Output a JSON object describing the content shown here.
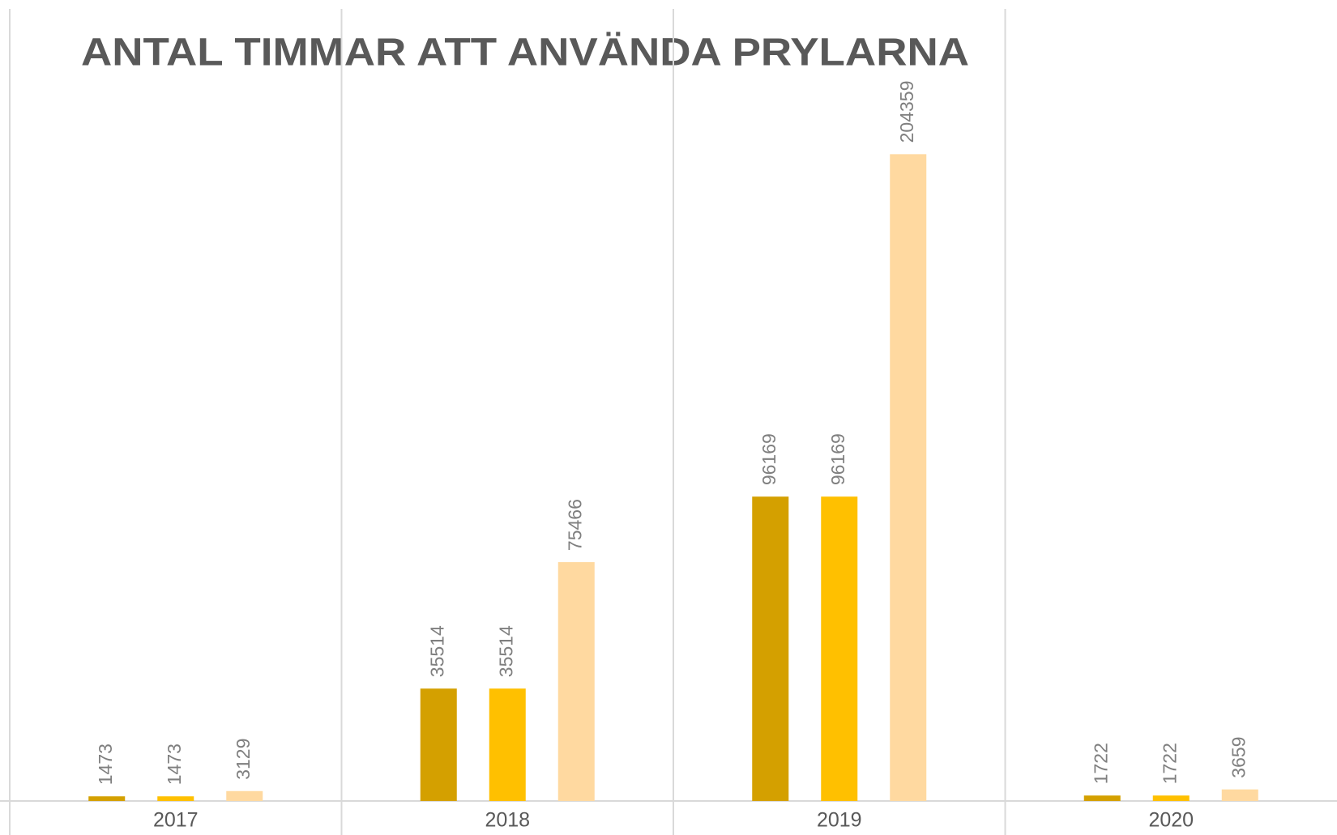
{
  "chart_data": {
    "type": "bar",
    "title": "ANTAL TIMMAR ATT ANVÄNDA PRYLARNA",
    "categories": [
      "2017",
      "2018",
      "2019",
      "2020"
    ],
    "series": [
      {
        "color": "#d4a000",
        "values": [
          1473,
          35514,
          96169,
          1722
        ]
      },
      {
        "color": "#ffc000",
        "values": [
          1473,
          35514,
          96169,
          1722
        ]
      },
      {
        "color": "#ffd9a0",
        "values": [
          3129,
          75466,
          204359,
          3659
        ]
      }
    ],
    "ylim": [
      0,
      250000
    ]
  }
}
